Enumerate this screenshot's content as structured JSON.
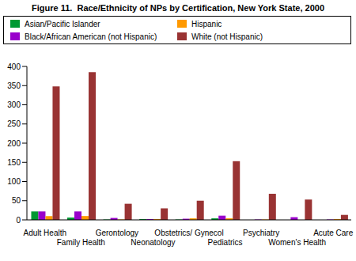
{
  "chart_data": {
    "type": "bar",
    "title": "Figure 11.  Race/Ethnicity of NPs by Certification, New York State, 2000",
    "categories": [
      "Adult Health",
      "Family Health",
      "Gerontology",
      "Neonatology",
      "Obstetrics/ Gynecol",
      "Pediatrics",
      "Psychiatry",
      "Women's Health",
      "Acute Care"
    ],
    "series": [
      {
        "name": "Asian/Pacific Islander",
        "color": "#009933",
        "values": [
          22,
          6,
          1,
          2,
          1,
          4,
          0,
          0,
          0
        ]
      },
      {
        "name": "Black/African American (not Hispanic)",
        "color": "#9900cc",
        "values": [
          22,
          22,
          5,
          2,
          3,
          11,
          1,
          7,
          1
        ]
      },
      {
        "name": "Hispanic",
        "color": "#ff9900",
        "values": [
          10,
          10,
          1,
          2,
          4,
          4,
          1,
          0,
          2
        ]
      },
      {
        "name": "White (not Hispanic)",
        "color": "#993333",
        "values": [
          348,
          385,
          42,
          30,
          50,
          153,
          68,
          53,
          13
        ]
      }
    ],
    "ylim": [
      0,
      400
    ],
    "yticks": [
      0,
      50,
      100,
      150,
      200,
      250,
      300,
      350,
      400
    ],
    "grid": false,
    "legend": "top"
  }
}
